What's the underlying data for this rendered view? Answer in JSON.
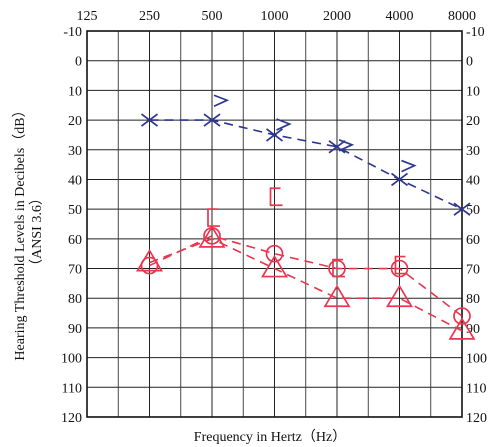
{
  "chart_data": {
    "type": "line",
    "title": "",
    "xlabel": "Frequency in Hertz（Hz）",
    "ylabel": "Hearing Threshold Levels in Decibels（dB）",
    "ylabel_sub": "（ANSI 3.6）",
    "x_ticks": [
      "125",
      "250",
      "500",
      "1000",
      "2000",
      "4000",
      "8000"
    ],
    "x_scale": "log2",
    "y_ticks": [
      "-10",
      "0",
      "10",
      "20",
      "30",
      "40",
      "50",
      "60",
      "70",
      "80",
      "90",
      "100",
      "110",
      "120"
    ],
    "ylim": [
      -10,
      120
    ],
    "y_inverted": true,
    "grid": true,
    "colors": {
      "right_ear": "#e8364f",
      "left_ear": "#2c3590",
      "grid": "#222222"
    },
    "series": [
      {
        "key": "left_air",
        "color": "#2c3590",
        "marker": "x",
        "line": "dashed",
        "points": [
          {
            "x": 250,
            "y": 20
          },
          {
            "x": 500,
            "y": 20
          },
          {
            "x": 1000,
            "y": 25
          },
          {
            "x": 2000,
            "y": 29
          },
          {
            "x": 4000,
            "y": 40
          },
          {
            "x": 8000,
            "y": 50
          }
        ]
      },
      {
        "key": "left_bone",
        "color": "#2c3590",
        "marker": "bracket-right",
        "line": "none",
        "points": [
          {
            "x": 500,
            "y": 14
          },
          {
            "x": 1000,
            "y": 22
          },
          {
            "x": 2000,
            "y": 29
          },
          {
            "x": 4000,
            "y": 36
          }
        ]
      },
      {
        "key": "right_air",
        "color": "#e8364f",
        "marker": "circle",
        "line": "dashed",
        "points": [
          {
            "x": 250,
            "y": 69
          },
          {
            "x": 500,
            "y": 59
          },
          {
            "x": 1000,
            "y": 65
          },
          {
            "x": 2000,
            "y": 70
          },
          {
            "x": 4000,
            "y": 70
          },
          {
            "x": 8000,
            "y": 86
          }
        ]
      },
      {
        "key": "right_masked_air",
        "color": "#e8364f",
        "marker": "triangle",
        "line": "dashed",
        "points": [
          {
            "x": 250,
            "y": 68
          },
          {
            "x": 500,
            "y": 60
          },
          {
            "x": 1000,
            "y": 70
          },
          {
            "x": 2000,
            "y": 80
          },
          {
            "x": 4000,
            "y": 80
          },
          {
            "x": 8000,
            "y": 91
          }
        ]
      },
      {
        "key": "right_bone",
        "color": "#e8364f",
        "marker": "bracket-left",
        "line": "none",
        "points": [
          {
            "x": 500,
            "y": 53
          },
          {
            "x": 1000,
            "y": 46
          },
          {
            "x": 2000,
            "y": 70
          },
          {
            "x": 4000,
            "y": 69
          }
        ]
      }
    ]
  }
}
